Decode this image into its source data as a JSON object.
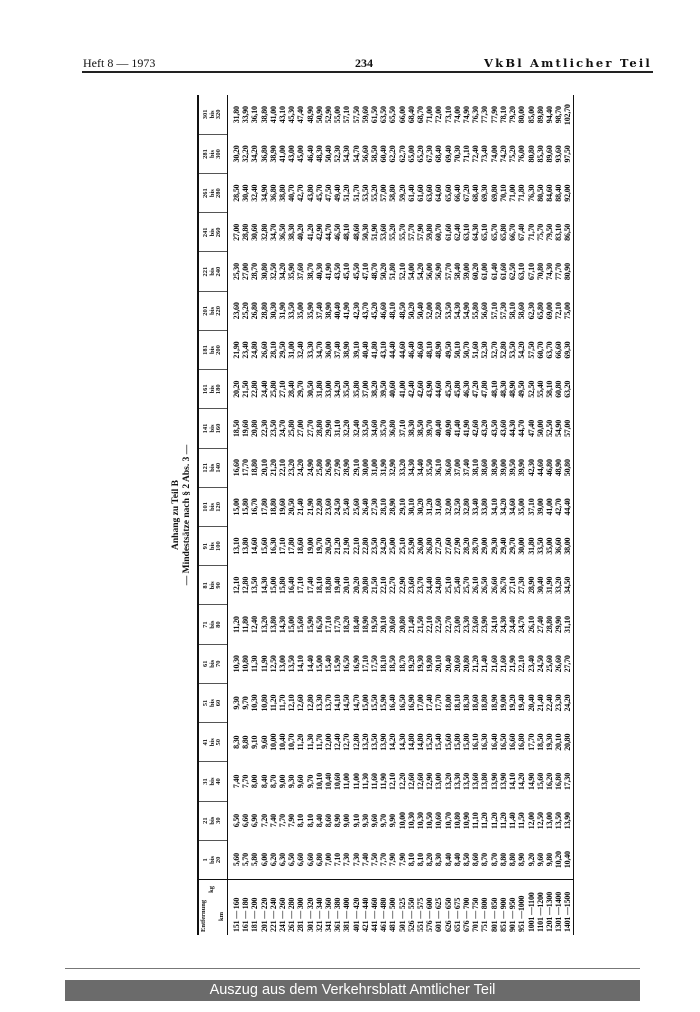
{
  "header": {
    "issue": "Heft 8 — 1973",
    "page": "234",
    "publication": "VkBl Amtlicher Teil"
  },
  "title": {
    "line1": "Anhang zu Teil B",
    "line2": "— Mindestsätze nach § 2 Abs. 3 —"
  },
  "table": {
    "corner": {
      "distance": "Entfernung",
      "weight_unit": "kg",
      "distance_unit": "km"
    },
    "bis_word": "bis",
    "weight_classes": [
      {
        "from": "1",
        "to": "20"
      },
      {
        "from": "21",
        "to": "30"
      },
      {
        "from": "31",
        "to": "40"
      },
      {
        "from": "41",
        "to": "50"
      },
      {
        "from": "51",
        "to": "60"
      },
      {
        "from": "61",
        "to": "70"
      },
      {
        "from": "71",
        "to": "80"
      },
      {
        "from": "81",
        "to": "90"
      },
      {
        "from": "91",
        "to": "100"
      },
      {
        "from": "101",
        "to": "120"
      },
      {
        "from": "121",
        "to": "140"
      },
      {
        "from": "141",
        "to": "160"
      },
      {
        "from": "161",
        "to": "180"
      },
      {
        "from": "181",
        "to": "200"
      },
      {
        "from": "201",
        "to": "220"
      },
      {
        "from": "221",
        "to": "240"
      },
      {
        "from": "241",
        "to": "260"
      },
      {
        "from": "261",
        "to": "280"
      },
      {
        "from": "281",
        "to": "300"
      },
      {
        "from": "301",
        "to": "320"
      }
    ],
    "distances": [
      "151 — 160",
      "161 — 180",
      "181 — 200",
      "201 — 220",
      "221 — 240",
      "241 — 260",
      "261 — 280",
      "281 — 300",
      "301 — 320",
      "321 — 340",
      "341 — 360",
      "361 — 380",
      "381 — 400",
      "401 — 420",
      "421 — 440",
      "441 — 460",
      "461 — 480",
      "481 — 500",
      "501 — 525",
      "526 — 550",
      "551 — 575",
      "576 — 600",
      "601 — 625",
      "626 — 650",
      "651 — 675",
      "676 — 700",
      "701 — 750",
      "751 — 800",
      "801 — 850",
      "851 — 900",
      "901 — 950",
      "951 —1000",
      "1001 —1100",
      "1101 —1200",
      "1201 —1300",
      "1301 —1400",
      "1401 —1500"
    ],
    "values_by_weight_class": [
      [
        "5,60",
        "5,70",
        "5,80",
        "6,00",
        "6,20",
        "6,30",
        "6,50",
        "6,60",
        "6,60",
        "6,80",
        "7,00",
        "7,10",
        "7,30",
        "7,30",
        "7,40",
        "7,50",
        "7,70",
        "7,90",
        "7,90",
        "8,10",
        "8,10",
        "8,20",
        "8,30",
        "8,40",
        "8,40",
        "8,50",
        "8,60",
        "8,70",
        "8,70",
        "8,80",
        "8,80",
        "8,90",
        "9,20",
        "9,60",
        "9,80",
        "10,20",
        "10,40"
      ],
      [
        "6,50",
        "6,60",
        "6,90",
        "7,20",
        "7,40",
        "7,70",
        "7,90",
        "8,10",
        "8,10",
        "8,40",
        "8,60",
        "8,90",
        "9,00",
        "9,10",
        "9,30",
        "9,60",
        "9,70",
        "9,90",
        "10,00",
        "10,30",
        "10,30",
        "10,50",
        "10,60",
        "10,70",
        "10,80",
        "10,90",
        "11,10",
        "11,20",
        "11,20",
        "11,20",
        "11,40",
        "11,50",
        "12,00",
        "12,50",
        "13,00",
        "13,50",
        "13,90"
      ],
      [
        "7,40",
        "7,70",
        "8,00",
        "8,40",
        "8,70",
        "9,00",
        "9,30",
        "9,60",
        "9,70",
        "10,10",
        "10,40",
        "10,60",
        "11,00",
        "11,00",
        "11,30",
        "11,60",
        "11,90",
        "12,10",
        "12,20",
        "12,60",
        "12,60",
        "12,90",
        "13,00",
        "13,20",
        "13,30",
        "13,50",
        "13,60",
        "13,80",
        "13,90",
        "13,90",
        "14,10",
        "14,20",
        "14,90",
        "15,60",
        "16,20",
        "16,80",
        "17,30"
      ],
      [
        "8,30",
        "8,80",
        "9,10",
        "9,60",
        "10,00",
        "10,40",
        "10,70",
        "11,20",
        "11,30",
        "11,70",
        "12,00",
        "12,40",
        "12,70",
        "12,80",
        "13,20",
        "13,50",
        "13,90",
        "14,20",
        "14,30",
        "14,80",
        "14,80",
        "15,20",
        "15,40",
        "15,60",
        "15,80",
        "15,80",
        "16,10",
        "16,30",
        "16,40",
        "16,50",
        "16,60",
        "16,80",
        "17,70",
        "18,50",
        "19,30",
        "20,10",
        "20,80"
      ],
      [
        "9,30",
        "9,70",
        "10,30",
        "10,80",
        "11,20",
        "11,70",
        "12,10",
        "12,60",
        "12,80",
        "13,30",
        "13,70",
        "14,10",
        "14,50",
        "14,70",
        "15,00",
        "15,50",
        "15,90",
        "16,40",
        "16,50",
        "16,90",
        "17,00",
        "17,40",
        "17,70",
        "18,00",
        "18,10",
        "18,30",
        "18,60",
        "18,80",
        "18,90",
        "19,00",
        "19,20",
        "19,40",
        "20,40",
        "21,40",
        "22,40",
        "23,30",
        "24,20"
      ],
      [
        "10,30",
        "10,80",
        "11,30",
        "11,90",
        "12,50",
        "13,00",
        "13,50",
        "14,10",
        "14,40",
        "15,00",
        "15,40",
        "15,90",
        "16,50",
        "16,90",
        "17,10",
        "17,50",
        "18,10",
        "18,50",
        "18,70",
        "19,20",
        "19,30",
        "19,80",
        "20,10",
        "20,40",
        "20,60",
        "20,80",
        "21,20",
        "21,40",
        "21,60",
        "21,60",
        "21,90",
        "22,10",
        "23,40",
        "24,50",
        "25,60",
        "26,60",
        "27,70"
      ],
      [
        "11,20",
        "11,80",
        "12,40",
        "13,20",
        "13,80",
        "14,30",
        "15,00",
        "15,60",
        "15,90",
        "16,50",
        "17,10",
        "17,70",
        "18,20",
        "18,40",
        "18,90",
        "19,50",
        "20,10",
        "20,60",
        "20,80",
        "21,40",
        "21,50",
        "22,10",
        "22,50",
        "22,70",
        "23,00",
        "23,30",
        "23,60",
        "23,90",
        "24,10",
        "24,30",
        "24,40",
        "24,70",
        "26,10",
        "27,40",
        "28,80",
        "29,90",
        "31,10"
      ],
      [
        "12,10",
        "12,80",
        "13,50",
        "14,30",
        "15,00",
        "15,80",
        "16,40",
        "17,10",
        "17,40",
        "18,10",
        "18,80",
        "19,40",
        "20,10",
        "20,20",
        "20,80",
        "21,50",
        "22,10",
        "22,70",
        "22,90",
        "23,60",
        "23,70",
        "24,40",
        "24,80",
        "25,10",
        "25,40",
        "25,70",
        "26,10",
        "26,50",
        "26,60",
        "26,70",
        "27,10",
        "27,30",
        "28,90",
        "30,40",
        "31,90",
        "33,20",
        "34,50"
      ],
      [
        "13,10",
        "13,80",
        "14,60",
        "15,60",
        "16,30",
        "17,10",
        "17,80",
        "18,60",
        "19,00",
        "19,70",
        "20,50",
        "21,20",
        "21,90",
        "22,10",
        "22,80",
        "23,50",
        "24,20",
        "25,00",
        "25,10",
        "25,90",
        "26,00",
        "26,80",
        "27,20",
        "27,60",
        "27,90",
        "28,20",
        "28,70",
        "29,00",
        "29,30",
        "29,40",
        "29,70",
        "30,00",
        "31,80",
        "33,50",
        "35,00",
        "36,60",
        "38,00"
      ],
      [
        "15,00",
        "15,80",
        "16,70",
        "17,80",
        "18,80",
        "19,60",
        "20,50",
        "21,40",
        "21,90",
        "22,80",
        "23,60",
        "24,50",
        "25,40",
        "25,60",
        "26,40",
        "27,30",
        "28,10",
        "28,90",
        "29,10",
        "30,10",
        "30,20",
        "31,20",
        "31,60",
        "32,00",
        "32,50",
        "32,80",
        "33,40",
        "33,80",
        "34,10",
        "34,20",
        "34,60",
        "35,00",
        "37,10",
        "39,00",
        "41,00",
        "42,70",
        "44,40"
      ],
      [
        "16,60",
        "17,70",
        "18,80",
        "20,10",
        "21,20",
        "22,10",
        "23,20",
        "24,20",
        "24,90",
        "25,80",
        "26,90",
        "27,90",
        "28,90",
        "29,10",
        "30,00",
        "31,00",
        "31,90",
        "32,90",
        "33,20",
        "34,30",
        "34,40",
        "35,50",
        "36,10",
        "36,60",
        "37,00",
        "37,40",
        "38,10",
        "38,60",
        "38,90",
        "39,00",
        "39,50",
        "39,90",
        "42,30",
        "44,60",
        "46,80",
        "48,90",
        "50,80"
      ],
      [
        "18,50",
        "19,60",
        "20,80",
        "22,30",
        "23,50",
        "24,70",
        "25,80",
        "27,00",
        "27,70",
        "28,80",
        "29,90",
        "31,10",
        "32,20",
        "32,40",
        "33,50",
        "34,60",
        "35,70",
        "36,80",
        "37,10",
        "38,30",
        "38,50",
        "39,70",
        "40,40",
        "40,90",
        "41,40",
        "41,90",
        "42,60",
        "43,20",
        "43,50",
        "43,60",
        "44,30",
        "44,70",
        "47,40",
        "50,00",
        "52,50",
        "54,90",
        "57,00"
      ],
      [
        "20,20",
        "21,50",
        "22,80",
        "24,40",
        "25,80",
        "27,10",
        "28,40",
        "29,70",
        "30,50",
        "31,80",
        "33,00",
        "34,20",
        "35,50",
        "35,80",
        "37,00",
        "38,20",
        "39,50",
        "40,60",
        "41,00",
        "42,40",
        "42,60",
        "43,90",
        "44,60",
        "45,20",
        "45,80",
        "46,30",
        "47,20",
        "47,80",
        "48,10",
        "48,30",
        "48,90",
        "49,50",
        "52,50",
        "55,40",
        "58,10",
        "60,80",
        "63,20"
      ],
      [
        "21,90",
        "23,40",
        "24,80",
        "26,60",
        "28,10",
        "29,50",
        "31,00",
        "32,40",
        "33,30",
        "34,70",
        "36,00",
        "37,40",
        "38,90",
        "39,10",
        "40,40",
        "41,80",
        "43,10",
        "44,40",
        "44,60",
        "46,40",
        "46,60",
        "48,10",
        "48,90",
        "49,50",
        "50,10",
        "50,70",
        "51,60",
        "52,30",
        "52,70",
        "52,80",
        "53,50",
        "54,20",
        "57,50",
        "60,70",
        "63,70",
        "66,60",
        "69,30"
      ],
      [
        "23,60",
        "25,20",
        "26,80",
        "28,80",
        "30,30",
        "31,90",
        "33,50",
        "35,00",
        "35,90",
        "37,40",
        "38,90",
        "40,40",
        "41,90",
        "42,30",
        "43,70",
        "45,20",
        "46,60",
        "48,10",
        "48,50",
        "50,20",
        "50,40",
        "52,00",
        "52,80",
        "53,50",
        "54,30",
        "54,90",
        "55,80",
        "56,60",
        "57,10",
        "57,30",
        "58,10",
        "58,60",
        "62,30",
        "65,80",
        "69,00",
        "72,10",
        "75,00"
      ],
      [
        "25,30",
        "27,00",
        "28,70",
        "30,80",
        "32,50",
        "34,20",
        "35,90",
        "37,60",
        "38,70",
        "40,30",
        "41,90",
        "43,50",
        "45,10",
        "45,50",
        "47,10",
        "48,70",
        "50,20",
        "51,80",
        "52,10",
        "54,00",
        "54,20",
        "56,00",
        "56,90",
        "57,70",
        "58,40",
        "59,00",
        "60,20",
        "61,00",
        "61,40",
        "61,60",
        "62,50",
        "63,10",
        "67,10",
        "70,80",
        "74,30",
        "77,70",
        "80,90"
      ],
      [
        "27,00",
        "28,80",
        "30,60",
        "32,80",
        "34,70",
        "36,50",
        "38,30",
        "40,20",
        "41,20",
        "42,90",
        "44,70",
        "46,50",
        "48,10",
        "48,60",
        "50,30",
        "51,90",
        "53,60",
        "55,20",
        "55,70",
        "57,70",
        "57,90",
        "59,80",
        "60,70",
        "61,60",
        "62,40",
        "63,10",
        "64,30",
        "65,10",
        "65,70",
        "65,80",
        "66,70",
        "67,40",
        "71,70",
        "75,70",
        "79,50",
        "83,10",
        "86,50"
      ],
      [
        "28,50",
        "30,40",
        "32,40",
        "34,90",
        "36,80",
        "38,80",
        "40,70",
        "42,70",
        "43,80",
        "45,70",
        "47,50",
        "49,40",
        "51,20",
        "51,70",
        "53,50",
        "55,20",
        "57,00",
        "58,80",
        "59,20",
        "61,40",
        "61,60",
        "63,60",
        "64,60",
        "65,60",
        "66,40",
        "67,20",
        "68,40",
        "69,30",
        "69,80",
        "70,10",
        "71,00",
        "71,80",
        "76,30",
        "80,50",
        "84,60",
        "88,40",
        "92,00"
      ],
      [
        "30,20",
        "32,20",
        "34,20",
        "36,80",
        "38,90",
        "41,00",
        "43,00",
        "45,00",
        "46,40",
        "48,30",
        "50,40",
        "52,30",
        "54,30",
        "54,70",
        "56,60",
        "58,50",
        "60,40",
        "62,20",
        "62,70",
        "65,00",
        "65,20",
        "67,30",
        "68,40",
        "69,40",
        "70,30",
        "71,10",
        "72,40",
        "73,40",
        "74,00",
        "74,20",
        "75,20",
        "76,00",
        "80,80",
        "85,30",
        "89,60",
        "93,60",
        "97,50"
      ],
      [
        "31,80",
        "33,90",
        "36,10",
        "38,80",
        "41,00",
        "43,10",
        "45,30",
        "47,40",
        "48,90",
        "50,90",
        "52,90",
        "55,00",
        "57,10",
        "57,50",
        "59,60",
        "61,50",
        "63,50",
        "65,50",
        "66,00",
        "68,40",
        "68,70",
        "71,00",
        "72,00",
        "73,10",
        "74,00",
        "74,90",
        "76,30",
        "77,30",
        "77,90",
        "78,10",
        "79,20",
        "80,00",
        "85,00",
        "89,80",
        "94,40",
        "98,70",
        "102,70"
      ]
    ]
  },
  "footer": {
    "banner": "Auszug aus dem Verkehrsblatt Amtlicher Teil"
  }
}
